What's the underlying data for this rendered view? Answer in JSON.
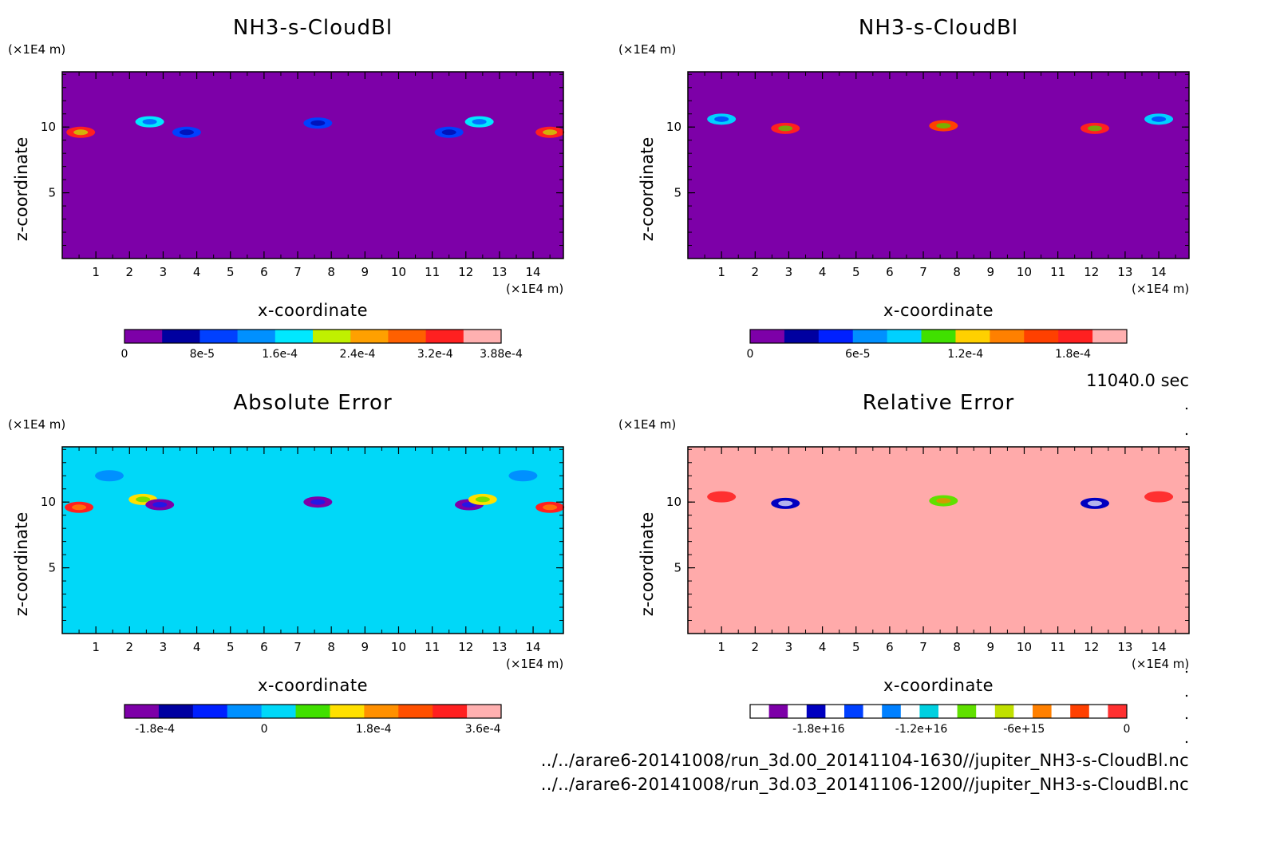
{
  "chart_data": [
    {
      "type": "heatmap",
      "title": "NH3-s-CloudBl",
      "xlabel": "x-coordinate",
      "ylabel": "z-coordinate",
      "x_unit": "(×1E4 m)",
      "z_unit": "(×1E4 m)",
      "xlim": [
        0,
        14.9
      ],
      "ylim": [
        0,
        14.2
      ],
      "x_ticks": [
        "1",
        "2",
        "3",
        "4",
        "5",
        "6",
        "7",
        "8",
        "9",
        "10",
        "11",
        "12",
        "13",
        "14"
      ],
      "y_ticks": [
        "5",
        "10"
      ],
      "background_color": "#7d00a8",
      "colorbar": {
        "colors": [
          "#7d00a8",
          "#0000a0",
          "#0040ff",
          "#0090ff",
          "#00e8ff",
          "#c0f000",
          "#ffa000",
          "#ff6000",
          "#ff2020",
          "#ffb0b0"
        ],
        "labels": [
          "0",
          "8e-5",
          "1.6e-4",
          "2.4e-4",
          "3.2e-4",
          "3.88e-4"
        ],
        "label_values": [
          0,
          8e-05,
          0.00016,
          0.00024,
          0.00032,
          0.000388
        ],
        "range": [
          0,
          0.000388
        ]
      },
      "features": [
        {
          "x": 0.55,
          "z": 9.6,
          "value": 0.00033
        },
        {
          "x": 2.6,
          "z": 10.4,
          "value": 0.00016
        },
        {
          "x": 3.7,
          "z": 9.6,
          "value": 8e-05
        },
        {
          "x": 7.6,
          "z": 10.3,
          "value": 8e-05
        },
        {
          "x": 11.5,
          "z": 9.6,
          "value": 8e-05
        },
        {
          "x": 12.4,
          "z": 10.4,
          "value": 0.00016
        },
        {
          "x": 14.5,
          "z": 9.6,
          "value": 0.00033
        }
      ]
    },
    {
      "type": "heatmap",
      "title": "NH3-s-CloudBl",
      "xlabel": "x-coordinate",
      "ylabel": "z-coordinate",
      "x_unit": "(×1E4 m)",
      "z_unit": "(×1E4 m)",
      "xlim": [
        0,
        14.9
      ],
      "ylim": [
        0,
        14.2
      ],
      "x_ticks": [
        "1",
        "2",
        "3",
        "4",
        "5",
        "6",
        "7",
        "8",
        "9",
        "10",
        "11",
        "12",
        "13",
        "14"
      ],
      "y_ticks": [
        "5",
        "10"
      ],
      "background_color": "#7d00a8",
      "colorbar": {
        "colors": [
          "#7d00a8",
          "#0000a0",
          "#0020ff",
          "#0090ff",
          "#00d0ff",
          "#40e000",
          "#ffd000",
          "#ff8000",
          "#ff4000",
          "#ff2020",
          "#ffb0b0"
        ],
        "labels": [
          "0",
          "6e-5",
          "1.2e-4",
          "1.8e-4"
        ],
        "label_values": [
          0,
          6e-05,
          0.00012,
          0.00018
        ],
        "range": [
          0,
          0.00021
        ]
      },
      "features": [
        {
          "x": 1.0,
          "z": 10.6,
          "value": 9e-05
        },
        {
          "x": 2.9,
          "z": 9.9,
          "value": 0.00018
        },
        {
          "x": 7.6,
          "z": 10.1,
          "value": 0.00016
        },
        {
          "x": 12.1,
          "z": 9.9,
          "value": 0.00018
        },
        {
          "x": 14.0,
          "z": 10.6,
          "value": 9e-05
        }
      ]
    },
    {
      "type": "heatmap",
      "title": "Absolute Error",
      "xlabel": "x-coordinate",
      "ylabel": "z-coordinate",
      "x_unit": "(×1E4 m)",
      "z_unit": "(×1E4 m)",
      "xlim": [
        0,
        14.9
      ],
      "ylim": [
        0,
        14.2
      ],
      "x_ticks": [
        "1",
        "2",
        "3",
        "4",
        "5",
        "6",
        "7",
        "8",
        "9",
        "10",
        "11",
        "12",
        "13",
        "14"
      ],
      "y_ticks": [
        "5",
        "10"
      ],
      "background_color": "#00d8f8",
      "colorbar": {
        "colors": [
          "#7d00a8",
          "#0000a0",
          "#0020ff",
          "#0090ff",
          "#00d8f8",
          "#40e000",
          "#ffe000",
          "#ff9000",
          "#ff5000",
          "#ff2020",
          "#ffb0b0"
        ],
        "labels": [
          "-1.8e-4",
          "0",
          "1.8e-4",
          "3.6e-4"
        ],
        "label_values": [
          -0.00018,
          0,
          0.00018,
          0.00036
        ],
        "range": [
          -0.00023,
          0.00039
        ]
      },
      "features": [
        {
          "x": 0.5,
          "z": 9.6,
          "value": 0.00033
        },
        {
          "x": 1.4,
          "z": 12.0,
          "value": -4e-05
        },
        {
          "x": 2.4,
          "z": 10.2,
          "value": 0.00015
        },
        {
          "x": 2.9,
          "z": 9.8,
          "value": -0.00018
        },
        {
          "x": 7.6,
          "z": 10.0,
          "value": -0.00018
        },
        {
          "x": 12.1,
          "z": 9.8,
          "value": -0.00018
        },
        {
          "x": 12.5,
          "z": 10.2,
          "value": 0.00015
        },
        {
          "x": 13.7,
          "z": 12.0,
          "value": -4e-05
        },
        {
          "x": 14.5,
          "z": 9.6,
          "value": 0.00033
        }
      ]
    },
    {
      "type": "heatmap",
      "title": "Relative Error",
      "xlabel": "x-coordinate",
      "ylabel": "z-coordinate",
      "x_unit": "(×1E4 m)",
      "z_unit": "(×1E4 m)",
      "xlim": [
        0,
        14.9
      ],
      "ylim": [
        0,
        14.2
      ],
      "x_ticks": [
        "1",
        "2",
        "3",
        "4",
        "5",
        "6",
        "7",
        "8",
        "9",
        "10",
        "11",
        "12",
        "13",
        "14"
      ],
      "y_ticks": [
        "5",
        "10"
      ],
      "background_color": "#ffaaaa",
      "colorbar": {
        "colors": [
          "#ffffff",
          "#7d00a8",
          "#ffffff",
          "#0000c0",
          "#ffffff",
          "#0040ff",
          "#ffffff",
          "#0080ff",
          "#ffffff",
          "#00d0e0",
          "#ffffff",
          "#60e000",
          "#ffffff",
          "#c0e000",
          "#ffffff",
          "#ff8000",
          "#ffffff",
          "#ff4000",
          "#ffffff",
          "#ff3030"
        ],
        "labels": [
          "-1.8e+16",
          "-1.2e+16",
          "-6e+15",
          "0"
        ],
        "label_values": [
          -1.8e+16,
          -1.2e+16,
          -6000000000000000.0,
          0
        ],
        "range": [
          -2.2e+16,
          0
        ]
      },
      "features": [
        {
          "x": 1.0,
          "z": 10.4,
          "value": -1000000000000000.0
        },
        {
          "x": 2.9,
          "z": 9.9,
          "value": -1.8e+16
        },
        {
          "x": 7.6,
          "z": 10.1,
          "value": -9000000000000000.0
        },
        {
          "x": 12.1,
          "z": 9.9,
          "value": -1.8e+16
        },
        {
          "x": 14.0,
          "z": 10.4,
          "value": -1000000000000000.0
        }
      ]
    }
  ],
  "annotations": {
    "time": "11040.0 sec",
    "file1": "../../arare6-20141008/run_3d.00_20141104-1630//jupiter_NH3-s-CloudBl.nc",
    "file2": "../../arare6-20141008/run_3d.03_20141106-1200//jupiter_NH3-s-CloudBl.nc"
  }
}
